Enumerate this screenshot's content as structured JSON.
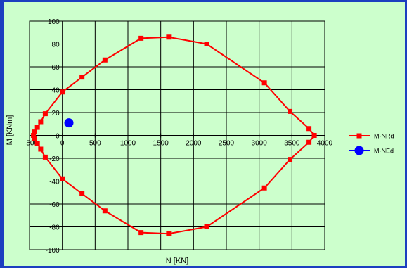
{
  "chart_data": {
    "type": "scatter",
    "xlabel": "N [KN]",
    "ylabel": "M [KNm]",
    "xlim": [
      -500,
      4000
    ],
    "ylim": [
      -100,
      100
    ],
    "x_ticks": [
      -500,
      0,
      500,
      1000,
      1500,
      2000,
      2500,
      3000,
      3500,
      4000
    ],
    "y_ticks": [
      -100,
      -80,
      -60,
      -40,
      -20,
      0,
      20,
      40,
      60,
      80,
      100
    ],
    "grid": true,
    "legend_position": "right",
    "series": [
      {
        "name": "M-NRd",
        "color": "#ff0000",
        "marker": "square",
        "line": true,
        "points": [
          [
            3840,
            0
          ],
          [
            3760,
            6
          ],
          [
            3470,
            21
          ],
          [
            3080,
            46
          ],
          [
            2200,
            80
          ],
          [
            1620,
            86
          ],
          [
            1200,
            85
          ],
          [
            650,
            66
          ],
          [
            300,
            51
          ],
          [
            0,
            38
          ],
          [
            -260,
            19
          ],
          [
            -330,
            12
          ],
          [
            -380,
            7
          ],
          [
            -420,
            3
          ],
          [
            -440,
            0
          ],
          [
            -420,
            -3
          ],
          [
            -380,
            -7
          ],
          [
            -330,
            -12
          ],
          [
            -260,
            -19
          ],
          [
            0,
            -38
          ],
          [
            300,
            -51
          ],
          [
            650,
            -66
          ],
          [
            1200,
            -85
          ],
          [
            1620,
            -86
          ],
          [
            2200,
            -80
          ],
          [
            3080,
            -46
          ],
          [
            3470,
            -21
          ],
          [
            3760,
            -6
          ],
          [
            3840,
            0
          ]
        ]
      },
      {
        "name": "M-NEd",
        "color": "#0000ff",
        "marker": "circle",
        "line": true,
        "points": [
          [
            100,
            11
          ]
        ]
      }
    ]
  }
}
